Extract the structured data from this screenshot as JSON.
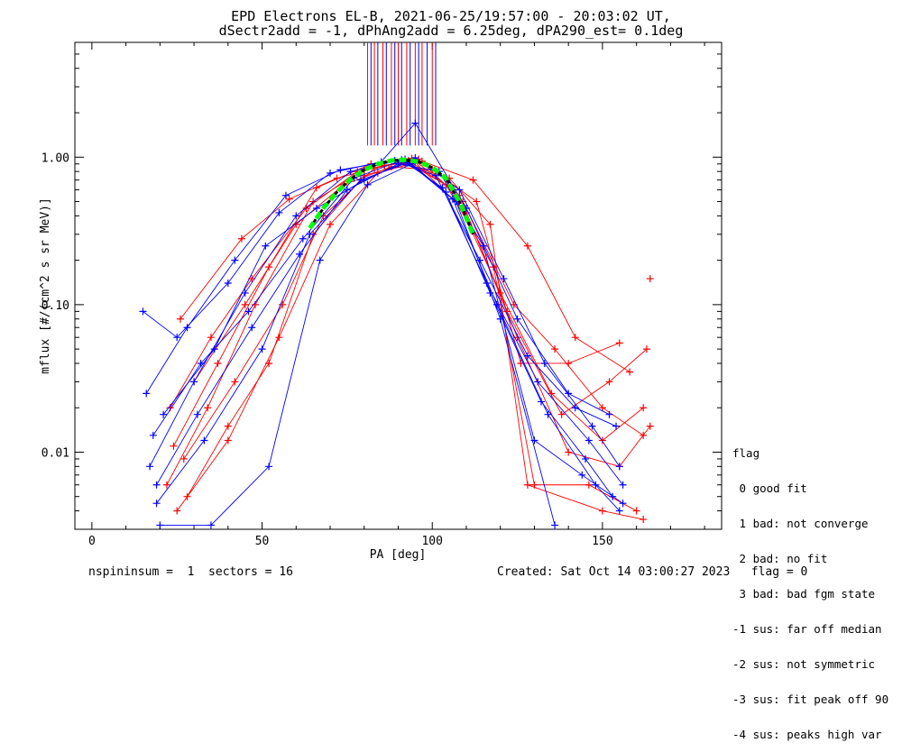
{
  "title_line1": "EPD Electrons EL-B, 2021-06-25/19:57:00 - 20:03:02 UT,",
  "title_line2": "dSectr2add = -1, dPhAng2add = 6.25deg, dPA290_est=   0.1deg",
  "footer": {
    "left": "nspininsum =  1  sectors = 16",
    "right": "Created: Sat Oct 14 03:00:27 2023   flag = 0"
  },
  "legend": {
    "title": "flag",
    "items": [
      " 0 good fit",
      " 1 bad: not converge",
      " 2 bad: no fit",
      " 3 bad: bad fgm state",
      "-1 sus: far off median",
      "-2 sus: not symmetric",
      "-3 sus: fit peak off 90",
      "-4 sus: peaks high var"
    ]
  },
  "colors": {
    "red": "#ff0000",
    "blue": "#0000ff",
    "fit": "#00ff00",
    "fit_dash": "#000000"
  },
  "chart_data": {
    "type": "line",
    "xlabel": "PA [deg]",
    "ylabel": "mflux [#/(cm^2 s sr MeV)]",
    "xlim": [
      -5,
      185
    ],
    "ylim": [
      0.003,
      6
    ],
    "yscale": "log",
    "xticks": [
      0,
      50,
      100,
      150
    ],
    "yticks": [
      0.01,
      0.1,
      1.0
    ],
    "ytick_labels": [
      "0.01",
      "0.10",
      "1.00"
    ],
    "series": [
      {
        "color": "red",
        "x": [
          22,
          34,
          48,
          65,
          80,
          93,
          106,
          120,
          135,
          150,
          162
        ],
        "y": [
          0.006,
          0.02,
          0.1,
          0.5,
          0.82,
          0.95,
          0.6,
          0.12,
          0.025,
          0.012,
          0.02
        ]
      },
      {
        "color": "red",
        "x": [
          24,
          37,
          52,
          66,
          82,
          94,
          108,
          122,
          138,
          152,
          163
        ],
        "y": [
          0.011,
          0.04,
          0.18,
          0.62,
          0.9,
          0.98,
          0.55,
          0.09,
          0.018,
          0.03,
          0.05
        ]
      },
      {
        "color": "red",
        "x": [
          25,
          40,
          55,
          70,
          84,
          95,
          110,
          125,
          140,
          155,
          164
        ],
        "y": [
          0.004,
          0.012,
          0.06,
          0.35,
          0.78,
          0.92,
          0.42,
          0.06,
          0.01,
          0.008,
          0.015
        ]
      },
      {
        "color": "red",
        "x": [
          26,
          44,
          58,
          72,
          86,
          97,
          112,
          128,
          142,
          158
        ],
        "y": [
          0.08,
          0.28,
          0.52,
          0.72,
          0.88,
          0.94,
          0.7,
          0.25,
          0.06,
          0.035
        ]
      },
      {
        "color": "red",
        "x": [
          23,
          35,
          47,
          63,
          78,
          92,
          104,
          118,
          130,
          146,
          160
        ],
        "y": [
          0.02,
          0.06,
          0.15,
          0.45,
          0.8,
          0.93,
          0.65,
          0.18,
          0.006,
          0.006,
          0.004
        ]
      },
      {
        "color": "red",
        "x": [
          27,
          42,
          56,
          68,
          83,
          96,
          109,
          124,
          136,
          150,
          162
        ],
        "y": [
          0.009,
          0.03,
          0.1,
          0.4,
          0.84,
          0.97,
          0.5,
          0.1,
          0.05,
          0.02,
          0.013
        ]
      },
      {
        "color": "red",
        "x": [
          30,
          45,
          60,
          74,
          88,
          100,
          113,
          126,
          140,
          155
        ],
        "y": [
          0.03,
          0.1,
          0.35,
          0.65,
          0.86,
          0.82,
          0.5,
          0.04,
          0.04,
          0.055
        ]
      },
      {
        "color": "red",
        "x": [
          28,
          40,
          52,
          65,
          80,
          92,
          105,
          117,
          128,
          150,
          162
        ],
        "y": [
          0.005,
          0.015,
          0.04,
          0.3,
          0.75,
          0.9,
          0.72,
          0.35,
          0.006,
          0.004,
          0.0035
        ]
      },
      {
        "color": "blue",
        "x": [
          17,
          30,
          45,
          60,
          76,
          91,
          103,
          116,
          131,
          146,
          156
        ],
        "y": [
          0.008,
          0.03,
          0.12,
          0.4,
          0.8,
          0.96,
          0.62,
          0.14,
          0.03,
          0.012,
          0.006
        ]
      },
      {
        "color": "blue",
        "x": [
          19,
          33,
          50,
          64,
          79,
          93,
          106,
          119,
          134,
          148,
          155
        ],
        "y": [
          0.0045,
          0.012,
          0.05,
          0.3,
          0.7,
          0.92,
          0.52,
          0.1,
          0.018,
          0.006,
          0.004
        ]
      },
      {
        "color": "blue",
        "x": [
          16,
          28,
          42,
          57,
          73,
          89,
          101,
          114,
          128,
          142,
          154
        ],
        "y": [
          0.025,
          0.07,
          0.2,
          0.55,
          0.82,
          0.95,
          0.75,
          0.2,
          0.045,
          0.02,
          0.015
        ]
      },
      {
        "color": "blue",
        "x": [
          18,
          32,
          46,
          62,
          77,
          92,
          104,
          117,
          132,
          145,
          153
        ],
        "y": [
          0.013,
          0.04,
          0.09,
          0.28,
          0.72,
          0.97,
          0.58,
          0.12,
          0.022,
          0.009,
          0.005
        ]
      },
      {
        "color": "blue",
        "x": [
          20,
          35,
          52,
          67,
          81,
          94,
          107,
          120,
          136
        ],
        "y": [
          0.0032,
          0.0032,
          0.008,
          0.2,
          0.65,
          0.9,
          0.5,
          0.08,
          0.0032
        ]
      },
      {
        "color": "blue",
        "x": [
          15,
          25,
          40,
          55,
          70,
          85,
          95,
          110,
          125,
          140,
          152
        ],
        "y": [
          0.09,
          0.06,
          0.14,
          0.42,
          0.78,
          0.93,
          1.7,
          0.45,
          0.08,
          0.025,
          0.018
        ]
      },
      {
        "color": "blue",
        "x": [
          21,
          36,
          51,
          66,
          80,
          95,
          108,
          121,
          133,
          147,
          155
        ],
        "y": [
          0.018,
          0.05,
          0.25,
          0.45,
          0.7,
          0.99,
          0.6,
          0.15,
          0.04,
          0.015,
          0.008
        ]
      },
      {
        "color": "blue",
        "x": [
          19,
          31,
          47,
          61,
          75,
          90,
          102,
          115,
          130,
          144,
          156
        ],
        "y": [
          0.006,
          0.018,
          0.07,
          0.22,
          0.6,
          0.9,
          0.8,
          0.25,
          0.012,
          0.007,
          0.0045
        ]
      }
    ],
    "fit_curve": {
      "x": [
        64,
        68,
        72,
        76,
        80,
        84,
        88,
        92,
        96,
        100,
        104,
        108,
        112
      ],
      "y": [
        0.33,
        0.45,
        0.58,
        0.71,
        0.82,
        0.9,
        0.95,
        0.96,
        0.93,
        0.85,
        0.72,
        0.5,
        0.3
      ]
    },
    "outliers": [
      {
        "color": "red",
        "x": 164,
        "y": 0.15
      }
    ],
    "vertical_markers": {
      "red_x": [
        81,
        83,
        85.5,
        88,
        90,
        92.5,
        95,
        97,
        100
      ],
      "blue_x": [
        82,
        84,
        86.5,
        89,
        91,
        93.5,
        96,
        98.5,
        101
      ]
    }
  }
}
